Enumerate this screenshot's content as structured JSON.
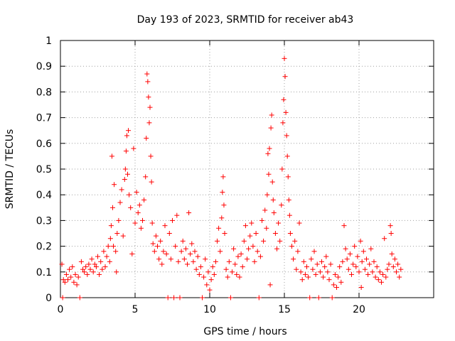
{
  "chart_data": {
    "type": "scatter",
    "title": "Day 193 of 2023, SRMTID for receiver ab43",
    "xlabel": "GPS time / hours",
    "ylabel": "SRMTID / TECUs",
    "xlim": [
      0,
      25
    ],
    "ylim": [
      0,
      1
    ],
    "x_ticks": [
      0,
      5,
      10,
      15,
      20
    ],
    "x_tick_labels": [
      "0",
      "5",
      "10",
      "15",
      "20"
    ],
    "y_ticks": [
      0,
      0.1,
      0.2,
      0.3,
      0.4,
      0.5,
      0.6,
      0.7,
      0.8,
      0.9,
      1
    ],
    "y_tick_labels": [
      "0",
      "0.1",
      "0.2",
      "0.3",
      "0.4",
      "0.5",
      "0.6",
      "0.7",
      "0.8",
      "0.9",
      "1"
    ],
    "grid": true,
    "marker": "+",
    "colors": {
      "series": "#ff0000",
      "grid": "#a0a0a0",
      "axis": "#000000"
    },
    "series": [
      {
        "name": "SRMTID",
        "points": [
          [
            0.1,
            0.13
          ],
          [
            0.15,
            0.0
          ],
          [
            0.2,
            0.07
          ],
          [
            0.3,
            0.06
          ],
          [
            0.4,
            0.09
          ],
          [
            0.5,
            0.07
          ],
          [
            0.6,
            0.11
          ],
          [
            0.7,
            0.08
          ],
          [
            0.8,
            0.12
          ],
          [
            0.9,
            0.06
          ],
          [
            1.0,
            0.09
          ],
          [
            1.1,
            0.05
          ],
          [
            1.2,
            0.08
          ],
          [
            1.3,
            0.0
          ],
          [
            1.4,
            0.14
          ],
          [
            1.5,
            0.11
          ],
          [
            1.6,
            0.1
          ],
          [
            1.7,
            0.12
          ],
          [
            1.8,
            0.09
          ],
          [
            1.9,
            0.13
          ],
          [
            2.0,
            0.11
          ],
          [
            2.1,
            0.15
          ],
          [
            2.2,
            0.1
          ],
          [
            2.3,
            0.13
          ],
          [
            2.4,
            0.12
          ],
          [
            2.5,
            0.16
          ],
          [
            2.6,
            0.09
          ],
          [
            2.7,
            0.14
          ],
          [
            2.8,
            0.11
          ],
          [
            2.9,
            0.18
          ],
          [
            3.0,
            0.12
          ],
          [
            3.1,
            0.16
          ],
          [
            3.2,
            0.2
          ],
          [
            3.3,
            0.14
          ],
          [
            3.35,
            0.23
          ],
          [
            3.4,
            0.28
          ],
          [
            3.45,
            0.55
          ],
          [
            3.5,
            0.35
          ],
          [
            3.55,
            0.2
          ],
          [
            3.6,
            0.44
          ],
          [
            3.7,
            0.18
          ],
          [
            3.75,
            0.1
          ],
          [
            3.8,
            0.25
          ],
          [
            3.9,
            0.3
          ],
          [
            4.0,
            0.37
          ],
          [
            4.1,
            0.42
          ],
          [
            4.2,
            0.24
          ],
          [
            4.3,
            0.46
          ],
          [
            4.35,
            0.5
          ],
          [
            4.4,
            0.57
          ],
          [
            4.45,
            0.63
          ],
          [
            4.5,
            0.48
          ],
          [
            4.55,
            0.65
          ],
          [
            4.6,
            0.4
          ],
          [
            4.7,
            0.35
          ],
          [
            4.8,
            0.17
          ],
          [
            4.9,
            0.58
          ],
          [
            5.0,
            0.29
          ],
          [
            5.1,
            0.41
          ],
          [
            5.2,
            0.33
          ],
          [
            5.3,
            0.36
          ],
          [
            5.4,
            0.27
          ],
          [
            5.5,
            0.3
          ],
          [
            5.6,
            0.38
          ],
          [
            5.7,
            0.47
          ],
          [
            5.75,
            0.62
          ],
          [
            5.8,
            0.87
          ],
          [
            5.85,
            0.84
          ],
          [
            5.9,
            0.78
          ],
          [
            5.95,
            0.68
          ],
          [
            6.0,
            0.74
          ],
          [
            6.05,
            0.55
          ],
          [
            6.1,
            0.45
          ],
          [
            6.15,
            0.29
          ],
          [
            6.2,
            0.21
          ],
          [
            6.3,
            0.18
          ],
          [
            6.4,
            0.24
          ],
          [
            6.5,
            0.2
          ],
          [
            6.6,
            0.15
          ],
          [
            6.7,
            0.22
          ],
          [
            6.8,
            0.13
          ],
          [
            6.9,
            0.18
          ],
          [
            7.0,
            0.28
          ],
          [
            7.1,
            0.17
          ],
          [
            7.2,
            0.0
          ],
          [
            7.3,
            0.25
          ],
          [
            7.4,
            0.15
          ],
          [
            7.5,
            0.3
          ],
          [
            7.6,
            0.0
          ],
          [
            7.7,
            0.2
          ],
          [
            7.8,
            0.32
          ],
          [
            7.9,
            0.14
          ],
          [
            8.0,
            0.0
          ],
          [
            8.1,
            0.18
          ],
          [
            8.2,
            0.22
          ],
          [
            8.3,
            0.15
          ],
          [
            8.4,
            0.19
          ],
          [
            8.5,
            0.13
          ],
          [
            8.6,
            0.33
          ],
          [
            8.7,
            0.17
          ],
          [
            8.8,
            0.21
          ],
          [
            8.9,
            0.14
          ],
          [
            9.0,
            0.18
          ],
          [
            9.1,
            0.11
          ],
          [
            9.2,
            0.16
          ],
          [
            9.3,
            0.09
          ],
          [
            9.4,
            0.12
          ],
          [
            9.5,
            0.0
          ],
          [
            9.6,
            0.08
          ],
          [
            9.7,
            0.15
          ],
          [
            9.8,
            0.05
          ],
          [
            9.9,
            0.1
          ],
          [
            10.0,
            0.03
          ],
          [
            10.1,
            0.07
          ],
          [
            10.2,
            0.12
          ],
          [
            10.3,
            0.09
          ],
          [
            10.4,
            0.14
          ],
          [
            10.5,
            0.22
          ],
          [
            10.6,
            0.27
          ],
          [
            10.7,
            0.18
          ],
          [
            10.8,
            0.31
          ],
          [
            10.85,
            0.41
          ],
          [
            10.9,
            0.47
          ],
          [
            10.95,
            0.36
          ],
          [
            11.0,
            0.25
          ],
          [
            11.1,
            0.11
          ],
          [
            11.2,
            0.08
          ],
          [
            11.3,
            0.14
          ],
          [
            11.4,
            0.0
          ],
          [
            11.5,
            0.1
          ],
          [
            11.6,
            0.19
          ],
          [
            11.7,
            0.13
          ],
          [
            11.8,
            0.09
          ],
          [
            11.9,
            0.16
          ],
          [
            12.0,
            0.08
          ],
          [
            12.1,
            0.17
          ],
          [
            12.2,
            0.12
          ],
          [
            12.3,
            0.22
          ],
          [
            12.4,
            0.28
          ],
          [
            12.5,
            0.15
          ],
          [
            12.6,
            0.19
          ],
          [
            12.7,
            0.24
          ],
          [
            12.8,
            0.29
          ],
          [
            12.9,
            0.2
          ],
          [
            13.0,
            0.14
          ],
          [
            13.1,
            0.25
          ],
          [
            13.2,
            0.18
          ],
          [
            13.3,
            0.0
          ],
          [
            13.4,
            0.16
          ],
          [
            13.5,
            0.3
          ],
          [
            13.6,
            0.22
          ],
          [
            13.7,
            0.34
          ],
          [
            13.8,
            0.27
          ],
          [
            13.85,
            0.4
          ],
          [
            13.9,
            0.56
          ],
          [
            13.95,
            0.48
          ],
          [
            14.0,
            0.58
          ],
          [
            14.05,
            0.05
          ],
          [
            14.1,
            0.66
          ],
          [
            14.15,
            0.71
          ],
          [
            14.2,
            0.45
          ],
          [
            14.25,
            0.38
          ],
          [
            14.3,
            0.33
          ],
          [
            14.4,
            0.25
          ],
          [
            14.5,
            0.19
          ],
          [
            14.6,
            0.29
          ],
          [
            14.7,
            0.22
          ],
          [
            14.8,
            0.36
          ],
          [
            14.85,
            0.5
          ],
          [
            14.9,
            0.68
          ],
          [
            14.95,
            0.77
          ],
          [
            15.0,
            0.93
          ],
          [
            15.05,
            0.86
          ],
          [
            15.1,
            0.72
          ],
          [
            15.15,
            0.63
          ],
          [
            15.2,
            0.55
          ],
          [
            15.25,
            0.47
          ],
          [
            15.3,
            0.38
          ],
          [
            15.35,
            0.32
          ],
          [
            15.4,
            0.25
          ],
          [
            15.5,
            0.2
          ],
          [
            15.6,
            0.15
          ],
          [
            15.7,
            0.22
          ],
          [
            15.8,
            0.11
          ],
          [
            15.9,
            0.18
          ],
          [
            16.0,
            0.29
          ],
          [
            16.1,
            0.1
          ],
          [
            16.2,
            0.07
          ],
          [
            16.3,
            0.14
          ],
          [
            16.4,
            0.09
          ],
          [
            16.5,
            0.12
          ],
          [
            16.6,
            0.08
          ],
          [
            16.7,
            0.0
          ],
          [
            16.8,
            0.15
          ],
          [
            16.9,
            0.11
          ],
          [
            17.0,
            0.18
          ],
          [
            17.1,
            0.09
          ],
          [
            17.2,
            0.13
          ],
          [
            17.3,
            0.0
          ],
          [
            17.4,
            0.1
          ],
          [
            17.5,
            0.14
          ],
          [
            17.6,
            0.08
          ],
          [
            17.7,
            0.12
          ],
          [
            17.8,
            0.16
          ],
          [
            17.9,
            0.1
          ],
          [
            18.0,
            0.07
          ],
          [
            18.1,
            0.13
          ],
          [
            18.2,
            0.0
          ],
          [
            18.3,
            0.05
          ],
          [
            18.4,
            0.09
          ],
          [
            18.5,
            0.04
          ],
          [
            18.6,
            0.08
          ],
          [
            18.7,
            0.12
          ],
          [
            18.8,
            0.06
          ],
          [
            18.9,
            0.14
          ],
          [
            19.0,
            0.28
          ],
          [
            19.1,
            0.19
          ],
          [
            19.2,
            0.15
          ],
          [
            19.3,
            0.11
          ],
          [
            19.4,
            0.17
          ],
          [
            19.5,
            0.09
          ],
          [
            19.6,
            0.13
          ],
          [
            19.7,
            0.2
          ],
          [
            19.8,
            0.12
          ],
          [
            19.9,
            0.16
          ],
          [
            20.0,
            0.1
          ],
          [
            20.1,
            0.22
          ],
          [
            20.15,
            0.04
          ],
          [
            20.2,
            0.14
          ],
          [
            20.3,
            0.18
          ],
          [
            20.4,
            0.11
          ],
          [
            20.5,
            0.15
          ],
          [
            20.6,
            0.09
          ],
          [
            20.7,
            0.13
          ],
          [
            20.8,
            0.19
          ],
          [
            20.9,
            0.1
          ],
          [
            21.0,
            0.14
          ],
          [
            21.1,
            0.08
          ],
          [
            21.2,
            0.12
          ],
          [
            21.3,
            0.07
          ],
          [
            21.4,
            0.1
          ],
          [
            21.5,
            0.06
          ],
          [
            21.6,
            0.09
          ],
          [
            21.7,
            0.23
          ],
          [
            21.8,
            0.08
          ],
          [
            21.9,
            0.11
          ],
          [
            22.0,
            0.13
          ],
          [
            22.1,
            0.28
          ],
          [
            22.15,
            0.25
          ],
          [
            22.2,
            0.17
          ],
          [
            22.3,
            0.12
          ],
          [
            22.4,
            0.15
          ],
          [
            22.5,
            0.1
          ],
          [
            22.6,
            0.13
          ],
          [
            22.7,
            0.08
          ],
          [
            22.8,
            0.11
          ]
        ]
      }
    ]
  }
}
